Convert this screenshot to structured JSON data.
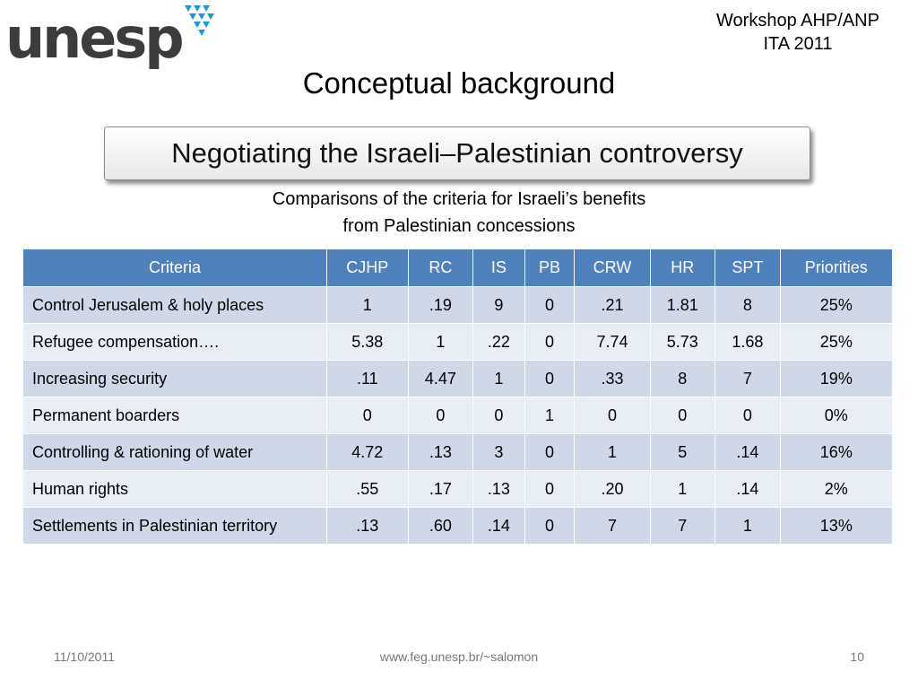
{
  "logo": {
    "text": "unesp"
  },
  "header": {
    "workshop_line1": "Workshop AHP/ANP",
    "workshop_line2": "ITA 2011"
  },
  "slide": {
    "title": "Conceptual background",
    "banner": "Negotiating the Israeli–Palestinian controversy",
    "subtitle_line1": "Comparisons of the criteria for Israeli’s benefits",
    "subtitle_line2": "from Palestinian concessions"
  },
  "table": {
    "headers": [
      "Criteria",
      "CJHP",
      "RC",
      "IS",
      "PB",
      "CRW",
      "HR",
      "SPT",
      "Priorities"
    ],
    "rows": [
      [
        "Control Jerusalem & holy places",
        "1",
        ".19",
        "9",
        "0",
        ".21",
        "1.81",
        "8",
        "25%"
      ],
      [
        "Refugee compensation….",
        "5.38",
        "1",
        ".22",
        "0",
        "7.74",
        "5.73",
        "1.68",
        "25%"
      ],
      [
        "Increasing security",
        ".11",
        "4.47",
        "1",
        "0",
        ".33",
        "8",
        "7",
        "19%"
      ],
      [
        "Permanent boarders",
        "0",
        "0",
        "0",
        "1",
        "0",
        "0",
        "0",
        "0%"
      ],
      [
        "Controlling & rationing of water",
        "4.72",
        ".13",
        "3",
        "0",
        "1",
        "5",
        ".14",
        "16%"
      ],
      [
        "Human rights",
        ".55",
        ".17",
        ".13",
        "0",
        ".20",
        "1",
        ".14",
        "2%"
      ],
      [
        "Settlements in Palestinian territory",
        ".13",
        ".60",
        ".14",
        "0",
        "7",
        "7",
        "1",
        "13%"
      ]
    ]
  },
  "footer": {
    "date": "11/10/2011",
    "url": "www.feg.unesp.br/~salomon",
    "page": "10"
  },
  "colors": {
    "header_blue": "#4f81bd",
    "row_dark": "#d0d8e8",
    "row_light": "#e9edf4",
    "logo_blue": "#1a9ad6"
  }
}
